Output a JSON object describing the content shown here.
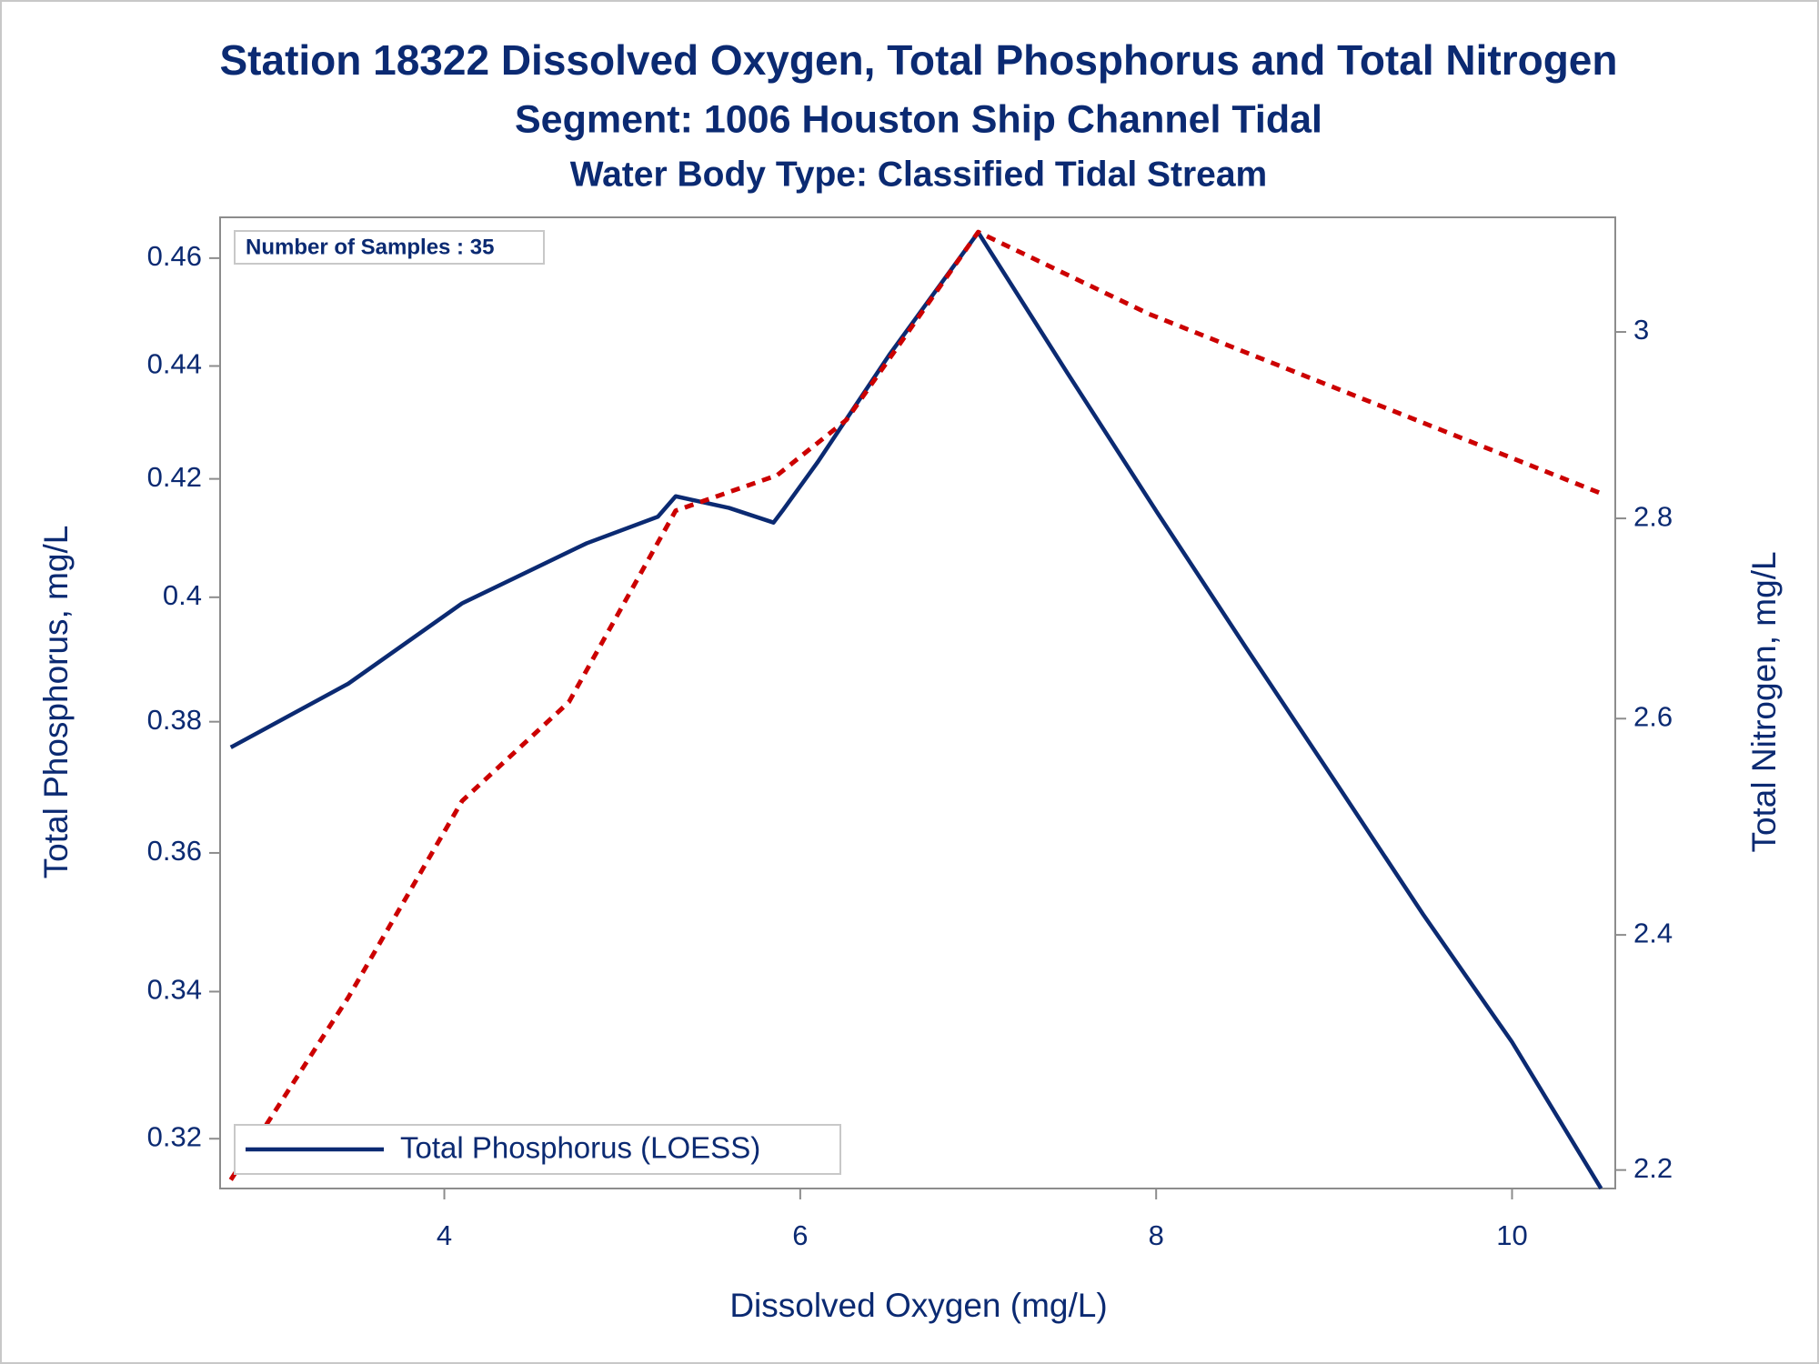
{
  "chart_data": {
    "type": "line",
    "title": "Station 18322  Dissolved Oxygen, Total Phosphorus and Total Nitrogen",
    "subtitle": "Segment: 1006  Houston Ship Channel Tidal",
    "subtitle2": "Water Body Type: Classified Tidal Stream",
    "annotation": "Number of Samples : 35",
    "xlabel": "Dissolved Oxygen (mg/L)",
    "ylabel": "Total Phosphorus, mg/L",
    "y2label": "Total Nitrogen, mg/L",
    "xlim": [
      2.74,
      10.58
    ],
    "xticks": [
      4,
      6,
      8,
      10
    ],
    "ylim": [
      0.3135,
      0.4678
    ],
    "yticks": [
      0.32,
      0.34,
      0.36,
      0.38,
      0.4,
      0.42,
      0.44,
      0.46
    ],
    "ylog": true,
    "y2lim": [
      2.185,
      3.13
    ],
    "y2ticks": [
      2.2,
      2.4,
      2.6,
      2.8,
      3
    ],
    "y2log": true,
    "grid": false,
    "legend": "lower left",
    "series": [
      {
        "name": "Total Phosphorus (LOESS)",
        "color": "#0b2a72",
        "dashed": false,
        "x": [
          2.8,
          3.46,
          4.1,
          4.8,
          5.2,
          5.3,
          5.6,
          5.85,
          5.9,
          6.1,
          6.5,
          7.0,
          7.5,
          8.0,
          8.5,
          9.0,
          9.5,
          10.0,
          10.5
        ],
        "values": [
          0.376,
          0.386,
          0.399,
          0.409,
          0.4135,
          0.417,
          0.415,
          0.4125,
          0.4145,
          0.423,
          0.442,
          0.4649,
          0.4388,
          0.4145,
          0.392,
          0.371,
          0.351,
          0.333,
          0.3135
        ]
      },
      {
        "color": "#cc0000",
        "dashed": true,
        "axis": "y2",
        "x": [
          2.8,
          3.46,
          4.1,
          4.7,
          5.3,
          5.87,
          6.26,
          7.0,
          7.96,
          10.5
        ],
        "values": [
          2.192,
          2.345,
          2.522,
          2.616,
          2.808,
          2.845,
          2.904,
          3.113,
          3.02,
          2.826
        ]
      }
    ]
  }
}
